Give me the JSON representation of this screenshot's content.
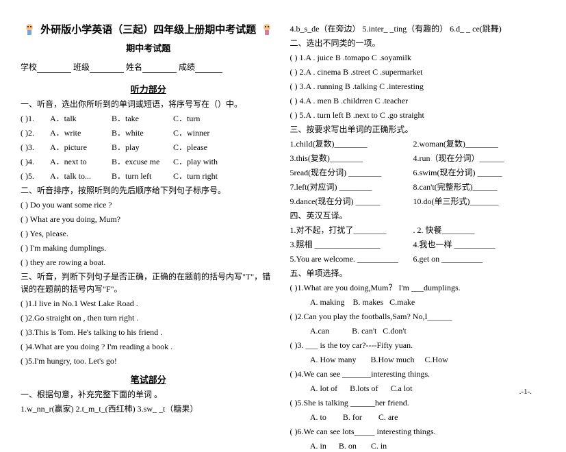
{
  "header": {
    "title": "外研版小学英语（三起）四年级上册期中考试题",
    "subtitle": "期中考试题",
    "school_label": "学校",
    "class_label": "班级",
    "name_label": "姓名",
    "score_label": "成绩"
  },
  "listening_head": "听力部分",
  "listen1_instr": "一、听音，选出你所听到的单词或短语，将序号写在（）中。",
  "listen1": [
    {
      "n": "(   )1.",
      "a": "A．talk",
      "b": "B．take",
      "c": "C．turn"
    },
    {
      "n": "(   )2.",
      "a": "A．write",
      "b": "B．white",
      "c": "C．winner"
    },
    {
      "n": "(   )3.",
      "a": "A．picture",
      "b": "B．play",
      "c": "C．please"
    },
    {
      "n": "(   )4.",
      "a": "A．next to",
      "b": "B．excuse me",
      "c": "C．play with"
    },
    {
      "n": "(   )5.",
      "a": "A．talk to...",
      "b": "B．turn left",
      "c": "C．turn right"
    }
  ],
  "listen2_instr": "二、听音排序，按照听到的先后顺序给下列句子标序号。",
  "listen2": [
    "(    ) Do you want some rice ?",
    "(    ) What are you doing, Mum?",
    "(    ) Yes, please.",
    "(    ) I'm making dumplings.",
    "(    ) they  are rowing  a  boat."
  ],
  "listen3_instr": "三、听音，判断下列句子是否正确，正确的在题前的括号内写\"T\"，错误的在题前的括号内写\"F\"。",
  "listen3": [
    "(    )1.I live in No.1 West Lake Road .",
    "(    )2.Go straight on , then turn right .",
    "(    )3.This is Tom.  He's talking to his friend .",
    "(    )4.What are you doing ? I'm reading a book .",
    "(    )5.I'm hungry, too.  Let's go!"
  ],
  "written_head": "笔试部分",
  "written1_instr": "一、根据句意，补充完整下面的单词 。",
  "written1_row": "1.w_nn_r(赢家)        2.t_m_t_(西红柿)       3.sw_ _t（糖果）",
  "written1_row2": "4.b_s_de（在旁边）    5.inter_ _ting（有趣的）   6.d_ _ ce(跳舞)",
  "written2_instr": "二、选出不同类的一项。",
  "written2": [
    "(    )  1.A . juice   B .tomapo  C .soyamilk",
    "(    )  2.A . cinema  B .street  C .supermarket",
    "(    )  3.A . running  B .talking  C .interesting",
    "(    )  4.A . men  B .childrren  C .teacher",
    "(    )  5.A . turn left  B .next to  C .go straight"
  ],
  "written3_instr": "三、按要求写出单词的正确形式。",
  "written3": [
    {
      "l": "1.child(复数)________",
      "r": "2.woman(复数)________"
    },
    {
      "l": "3.this(复数)________",
      "r": "4.run（现在分词）______"
    },
    {
      "l": "5read(现在分词) ________",
      "r": "6.swim(现在分词) ______"
    },
    {
      "l": "7.left(对应词) ________",
      "r": "8.can't(完整形式)______"
    },
    {
      "l": "9.dance(现在分词) ______",
      "r": "10.do(单三形式)_______"
    }
  ],
  "written4_instr": "四、英汉互译。",
  "written4": [
    {
      "l": "1.对不起，打扰了________",
      "r": ". 2. 快餐________"
    },
    {
      "l": "3.照相 ________________",
      "r": "4.我也一样 __________"
    },
    {
      "l": "5.You are welcome. __________",
      "r": "6.get on __________"
    }
  ],
  "written5_instr": "五、单项选择。",
  "written5": [
    {
      "q": "(      )1.What are you doing,Mum？ I'm ___dumplings.",
      "opts": "          A. making    B. makes   C.make"
    },
    {
      "q": "(      )2.Can you play the footballs,Sam? No,I______",
      "opts": "          A.can           B. can't   C.don't"
    },
    {
      "q": "(      )3. ___ is the toy car?----Fifty yuan.",
      "opts": "          A. How many       B.How much     C.How"
    },
    {
      "q": "(      )4.We can see _______interesting things.",
      "opts": "          A. lot of      B.lots of      C.a lot"
    },
    {
      "q": "(      )5.She is talking ______her friend.",
      "opts": "          A. to        B. for        C. are"
    },
    {
      "q": "(      )6.We can see lots_____ interesting things.",
      "opts": "          A. in      B. on       C. in"
    }
  ],
  "page_num": ".-1-."
}
